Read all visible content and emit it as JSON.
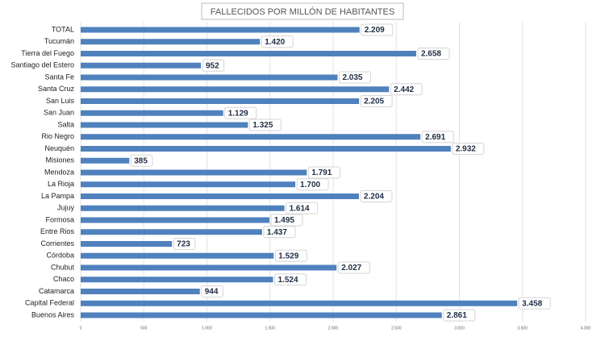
{
  "chart_data": {
    "type": "bar",
    "title": "FALLECIDOS POR MILLÓN DE HABITANTES",
    "categories": [
      "TOTAL",
      "Tucumán",
      "Tierra del Fuego",
      "Santiago del Estero",
      "Santa Fe",
      "Santa Cruz",
      "San Luis",
      "San Juan",
      "Salta",
      "Rio Negro",
      "Neuquén",
      "Misiones",
      "Mendoza",
      "La Rioja",
      "La Pampa",
      "Jujuy",
      "Formosa",
      "Entre Rios",
      "Corrientes",
      "Córdoba",
      "Chubut",
      "Chaco",
      "Catamarca",
      "Capital Federal",
      "Buenos Aires"
    ],
    "values": [
      2209,
      1420,
      2658,
      952,
      2035,
      2442,
      2205,
      1129,
      1325,
      2691,
      2932,
      385,
      1791,
      1700,
      2204,
      1614,
      1495,
      1437,
      723,
      1529,
      2027,
      1524,
      944,
      3458,
      2861
    ],
    "value_labels": [
      "2.209",
      "1.420",
      "2.658",
      "952",
      "2.035",
      "2.442",
      "2.205",
      "1.129",
      "1.325",
      "2.691",
      "2.932",
      "385",
      "1.791",
      "1.700",
      "2.204",
      "1.614",
      "1.495",
      "1.437",
      "723",
      "1.529",
      "2.027",
      "1.524",
      "944",
      "3.458",
      "2.861"
    ],
    "color": "#4f81bd",
    "xlim": [
      0,
      4000
    ],
    "xticks": [
      0,
      500,
      {
        "value": 1000,
        "label": "1.000"
      },
      {
        "value": 1500,
        "label": "1.500"
      },
      {
        "value": 2000,
        "label": "2.000"
      },
      {
        "value": 2500,
        "label": "2.500"
      },
      {
        "value": 3000,
        "label": "3.000"
      },
      {
        "value": 3500,
        "label": "3.500"
      },
      {
        "value": 4000,
        "label": "4.000"
      }
    ],
    "grid": true
  }
}
